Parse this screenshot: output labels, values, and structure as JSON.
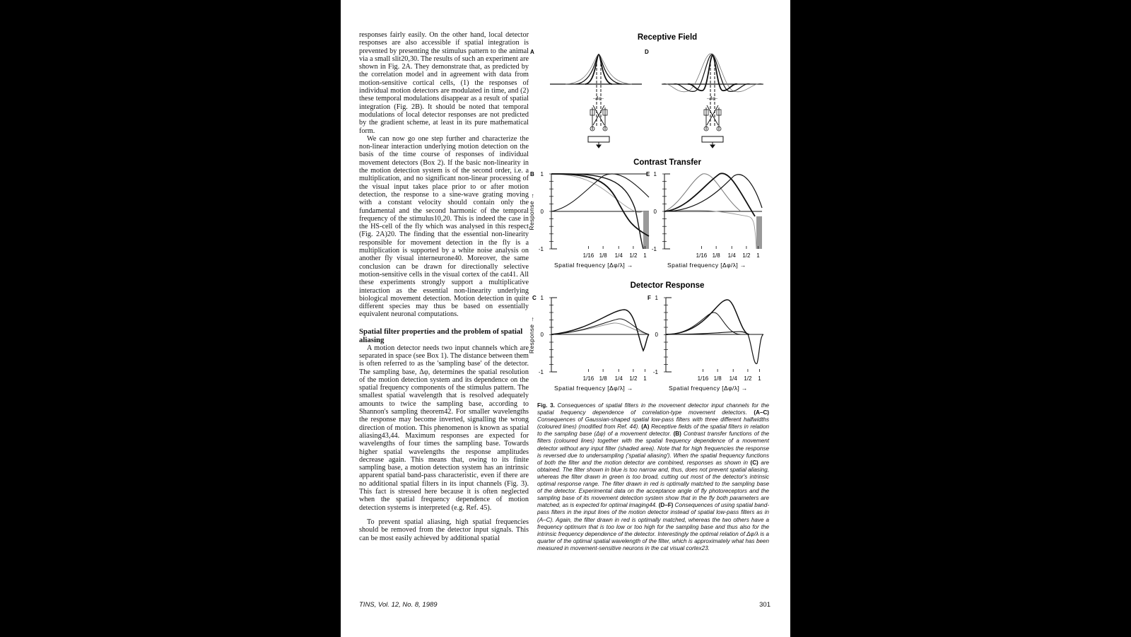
{
  "body_text": {
    "p1": "responses fairly easily. On the other hand, local detector responses are also accessible if spatial integration is prevented by presenting the stimulus pattern to the animal via a small slit20,30. The results of such an experiment are shown in Fig. 2A. They demonstrate that, as predicted by the correlation model and in agreement with data from motion-sensitive cortical cells, (1) the responses of individual motion detectors are modulated in time, and (2) these temporal modulations disappear as a result of spatial integration (Fig. 2B). It should be noted that temporal modulations of local detector responses are not predicted by the gradient scheme, at least in its pure mathematical form.",
    "p2": "We can now go one step further and characterize the non-linear interaction underlying motion detection on the basis of the time course of responses of individual movement detectors (Box 2). If the basic non-linearity in the motion detection system is of the second order, i.e. a multiplication, and no significant non-linear processing of the visual input takes place prior to or after motion detection, the response to a sine-wave grating moving with a constant velocity should contain only the fundamental and the second harmonic of the temporal frequency of the stimulus10,20. This is indeed the case in the HS-cell of the fly which was analysed in this respect (Fig. 2A)20. The finding that the essential non-linearity responsible for movement detection in the fly is a multiplication is supported by a white noise analysis on another fly visual interneurone40. Moreover, the same conclusion can be drawn for directionally selective motion-sensitive cells in the visual cortex of the cat41. All these experiments strongly support a multiplicative interaction as the essential non-linearity underlying biological movement detection. Motion detection in quite different species may thus be based on essentially equivalent neuronal computations.",
    "heading": "Spatial filter properties and the problem of spatial aliasing",
    "p3": "A motion detector needs two input channels which are separated in space (see Box 1). The distance between them is often referred to as the 'sampling base' of the detector. The sampling base, Δφ, determines the spatial resolution of the motion detection system and its dependence on the spatial frequency components of the stimulus pattern. The smallest spatial wavelength that is resolved adequately amounts to twice the sampling base, according to Shannon's sampling theorem42. For smaller wavelengths the response may become inverted, signalling the wrong direction of motion. This phenomenon is known as spatial aliasing43,44. Maximum responses are expected for wavelengths of four times the sampling base. Towards higher spatial wavelengths the response amplitudes decrease again. This means that, owing to its finite sampling base, a motion detection system has an intrinsic apparent spatial band-pass characteristic, even if there are no additional spatial filters in its input channels (Fig. 3). This fact is stressed here because it is often neglected when the spatial frequency dependence of motion detection systems is interpreted (e.g. Ref. 45).",
    "p4": "To prevent spatial aliasing, high spatial frequencies should be removed from the detector input signals. This can be most easily achieved by additional spatial"
  },
  "figure": {
    "section_titles": [
      "Receptive Field",
      "Contrast Transfer",
      "Detector Response"
    ],
    "panel_letters": [
      "A",
      "B",
      "C",
      "D",
      "E",
      "F"
    ],
    "y_axis_label": "Response",
    "y_ticks": [
      "1",
      "0",
      "-1"
    ],
    "x_ticks": [
      "1/16",
      "1/8",
      "1/4",
      "1/2",
      "1"
    ],
    "x_axis_label": "Spatial frequency [Δφ/λ]"
  },
  "caption": {
    "fig_label": "Fig. 3.",
    "s1": "Consequences of spatial filters in the movement detector input channels for the spatial frequency dependence of correlation-type movement detectors.",
    "lab_AC": "(A–C)",
    "s2": "Consequences of Gaussian-shaped spatial low-pass filters with three different halfwidths (coloured lines) (modified from Ref. 44).",
    "lab_A": "(A)",
    "s3": "Receptive fields of the spatial filters in relation to the sampling base (Δφ) of a movement detector.",
    "lab_B": "(B)",
    "s4": "Contrast transfer functions of the filters (coloured lines) together with the spatial frequency dependence of a movement detector without any input filter (shaded area). Note that for high frequencies the response is reversed due to undersampling ('spatial aliasing'). When the spatial frequency functions of both the filter and the motion detector are combined, responses as shown in",
    "lab_C": "(C)",
    "s5": "are obtained. The filter shown in blue is too narrow and, thus, does not prevent spatial aliasing, whereas the filter drawn in green is too broad, cutting out most of the detector's intrinsic optimal response range. The filter drawn in red is optimally matched to the sampling base of the detector. Experimental data on the acceptance angle of fly photoreceptors and the sampling base of its movement detection system show that in the fly both parameters are matched, as is expected for optimal imaging44.",
    "lab_DF": "(D–F)",
    "s6": "Consequences of using spatial band-pass filters in the input lines of the motion detector instead of spatial low-pass filters as in (A–C). Again, the filter drawn in red is optimally matched, whereas the two others have a frequency optimum that is too low or too high for the sampling base and thus also for the intrinsic frequency dependence of the detector. Interestingly the optimal relation of Δφ/λ is a quarter of the optimal spatial wavelength of the filter, which is approximately what has been measured in movement-sensitive neurons in the cat visual cortex23."
  },
  "footer": {
    "journal": "TINS, Vol. 12, No. 8, 1989",
    "page_number": "301"
  }
}
